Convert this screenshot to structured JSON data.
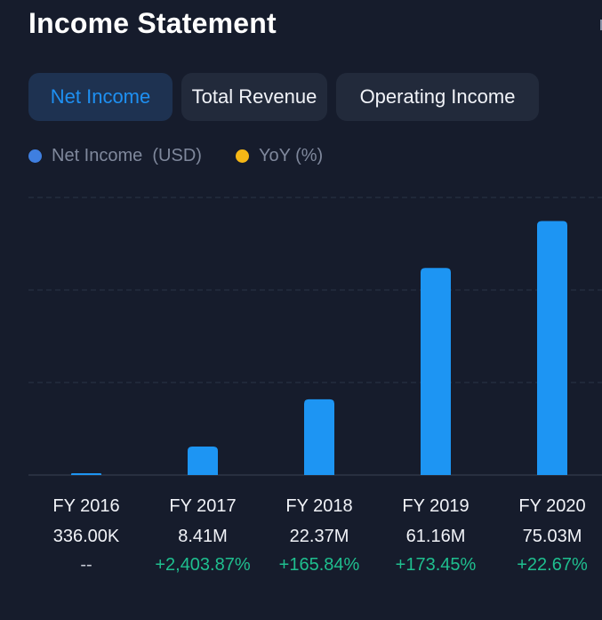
{
  "header": {
    "title": "Income Statement"
  },
  "tabs": [
    {
      "label": "Net Income",
      "active": true
    },
    {
      "label": "Total Revenue",
      "active": false
    },
    {
      "label": "Operating Income",
      "active": false
    }
  ],
  "legend": [
    {
      "label": "Net Income  (USD)",
      "color": "#3f7fe0"
    },
    {
      "label": "YoY (%)",
      "color": "#f5b716"
    }
  ],
  "colors": {
    "bar": "#1d95f3",
    "positive": "#1fbf8f",
    "neutral": "#c7ccd6"
  },
  "chart_data": {
    "type": "bar",
    "categories": [
      "FY 2016",
      "FY 2017",
      "FY 2018",
      "FY 2019",
      "FY 2020"
    ],
    "series": [
      {
        "name": "Net Income  (USD)",
        "values": [
          336000,
          8410000,
          22370000,
          61160000,
          75030000
        ],
        "value_labels": [
          "336.00K",
          "8.41M",
          "22.37M",
          "61.16M",
          "75.03M"
        ]
      }
    ],
    "yoy_labels": [
      "--",
      "+2,403.87%",
      "+165.84%",
      "+173.45%",
      "+22.67%"
    ],
    "ylim": [
      0,
      82000000
    ],
    "grid": true,
    "legend_position": "top-left"
  }
}
